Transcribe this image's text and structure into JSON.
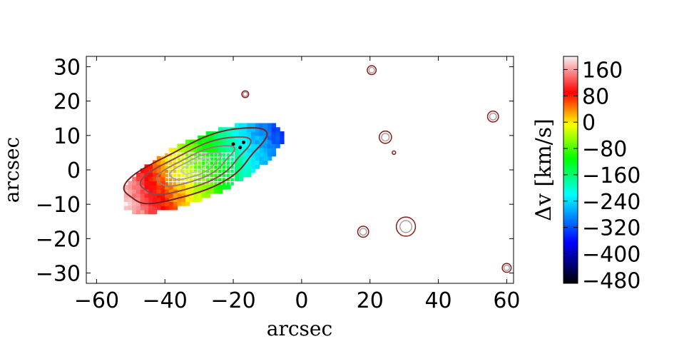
{
  "chart_data": {
    "type": "heatmap",
    "title": "",
    "xlabel": "arcsec",
    "ylabel": "arcsec",
    "xlim": [
      -63,
      62
    ],
    "ylim": [
      -33,
      33
    ],
    "xticks": [
      -60,
      -40,
      -20,
      0,
      20,
      40,
      60
    ],
    "yticks": [
      -30,
      -20,
      -10,
      0,
      10,
      20,
      30
    ],
    "colorbar": {
      "label": "Δv [km/s]",
      "range": [
        -490,
        200
      ],
      "ticks": [
        160,
        80,
        0,
        -80,
        -160,
        -240,
        -320,
        -400,
        -480
      ],
      "colormap": [
        "#000000",
        "#0000ff",
        "#00ffff",
        "#00ff00",
        "#ffff00",
        "#ff0000",
        "#ffffff"
      ]
    },
    "velocity_field": {
      "major_axis_pa_deg": 24,
      "center": [
        -30,
        0
      ],
      "extent_x": [
        -52,
        -5
      ],
      "extent_y": [
        -14,
        15
      ]
    },
    "contour_sources": [
      {
        "x": -16.5,
        "y": 22,
        "r": 1.0,
        "rings": 2
      },
      {
        "x": 20.5,
        "y": 29,
        "r": 1.3,
        "rings": 2
      },
      {
        "x": 24.5,
        "y": 9.5,
        "r": 1.8,
        "rings": 2
      },
      {
        "x": 27,
        "y": 5,
        "r": 0.5,
        "rings": 1
      },
      {
        "x": 56,
        "y": 15.5,
        "r": 1.6,
        "rings": 2
      },
      {
        "x": 18,
        "y": -18,
        "r": 1.6,
        "rings": 2
      },
      {
        "x": 30.5,
        "y": -16.5,
        "r": 2.8,
        "rings": 2
      },
      {
        "x": 60,
        "y": -28.5,
        "r": 1.3,
        "rings": 2
      }
    ]
  }
}
